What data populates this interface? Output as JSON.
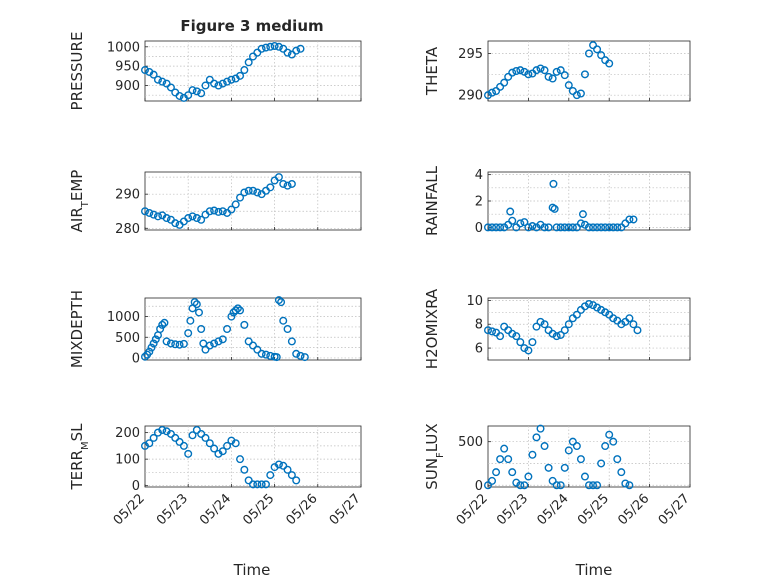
{
  "figure": {
    "title": "Figure 3 medium",
    "x_axis_label": "Time",
    "date_ticks": [
      "05/22",
      "05/23",
      "05/24",
      "05/25",
      "05/26",
      "05/27"
    ]
  },
  "chart_data": [
    {
      "type": "scatter",
      "title": "Figure 3 medium",
      "xlabel": "",
      "ylabel": "PRESSURE",
      "xlim": [
        "05/22",
        "05/27"
      ],
      "ylim": [
        860,
        1015
      ],
      "yticks": [
        900,
        950,
        1000
      ],
      "xticklabels": [],
      "grid": true,
      "color": "#0072bd",
      "series": [
        {
          "x_days": [
            0,
            0.1,
            0.2,
            0.3,
            0.4,
            0.5,
            0.6,
            0.7,
            0.8,
            0.9,
            1.0,
            1.1,
            1.2,
            1.3,
            1.4,
            1.5,
            1.6,
            1.7,
            1.8,
            1.9,
            2.0,
            2.1,
            2.2,
            2.3,
            2.4,
            2.5,
            2.6,
            2.7,
            2.8,
            2.9,
            3.0,
            3.1,
            3.2,
            3.3,
            3.4,
            3.5,
            3.6,
            3.7,
            3.8,
            3.9,
            4.0
          ],
          "values": [
            940,
            935,
            928,
            915,
            910,
            905,
            895,
            882,
            873,
            868,
            875,
            888,
            885,
            880,
            900,
            915,
            905,
            900,
            905,
            910,
            915,
            918,
            925,
            940,
            960,
            975,
            985,
            995,
            998,
            1000,
            1002,
            1000,
            995,
            985,
            980,
            990,
            995,
            null,
            null,
            null,
            null
          ]
        }
      ]
    },
    {
      "type": "scatter",
      "xlabel": "",
      "ylabel": "THETA",
      "xlim": [
        "05/22",
        "05/27"
      ],
      "ylim": [
        289.3,
        296.5
      ],
      "yticks": [
        290,
        295
      ],
      "xticklabels": [],
      "grid": true,
      "color": "#0072bd",
      "series": [
        {
          "x_days": [
            0,
            0.1,
            0.2,
            0.3,
            0.4,
            0.5,
            0.6,
            0.7,
            0.8,
            0.9,
            1.0,
            1.1,
            1.2,
            1.3,
            1.4,
            1.5,
            1.6,
            1.7,
            1.8,
            1.9,
            2.0,
            2.1,
            2.2,
            2.3,
            2.4,
            2.5,
            2.6,
            2.7,
            2.8,
            2.9,
            3.0,
            3.1,
            3.2,
            3.3,
            3.4,
            3.5,
            3.6,
            3.7,
            3.8,
            3.9,
            4.0
          ],
          "values": [
            290,
            290.3,
            290.5,
            291,
            291.5,
            292.2,
            292.7,
            292.9,
            293,
            292.8,
            292.5,
            292.6,
            293,
            293.2,
            293,
            292.2,
            292,
            292.8,
            293,
            292.4,
            291.2,
            290.5,
            290,
            290.2,
            292.5,
            295,
            296,
            295.5,
            294.8,
            294.2,
            293.8,
            null,
            null,
            null,
            null,
            null,
            null,
            null,
            null,
            null,
            null
          ]
        }
      ]
    },
    {
      "type": "scatter",
      "xlabel": "",
      "ylabel_main": "AIR",
      "ylabel_sub": "T",
      "ylabel_tail": "EMP",
      "xlim": [
        "05/22",
        "05/27"
      ],
      "ylim": [
        279.5,
        296.5
      ],
      "yticks": [
        280,
        290
      ],
      "xticklabels": [],
      "grid": true,
      "color": "#0072bd",
      "series": [
        {
          "x_days": [
            0,
            0.1,
            0.2,
            0.3,
            0.4,
            0.5,
            0.6,
            0.7,
            0.8,
            0.9,
            1.0,
            1.1,
            1.2,
            1.3,
            1.4,
            1.5,
            1.6,
            1.7,
            1.8,
            1.9,
            2.0,
            2.1,
            2.2,
            2.3,
            2.4,
            2.5,
            2.6,
            2.7,
            2.8,
            2.9,
            3.0,
            3.1,
            3.2,
            3.3,
            3.4,
            3.5,
            3.6,
            3.7,
            3.8,
            3.9,
            4.0
          ],
          "values": [
            285,
            284.5,
            284,
            283.5,
            283.8,
            283,
            282.5,
            281.5,
            281,
            282,
            283,
            283.5,
            283,
            282.5,
            284,
            285,
            285.2,
            284.8,
            285,
            284.5,
            285.5,
            287,
            289,
            290.5,
            291,
            291,
            290.5,
            290,
            291,
            292,
            294,
            295,
            293,
            292.5,
            293,
            null,
            null,
            null,
            null,
            null,
            null
          ]
        }
      ]
    },
    {
      "type": "scatter",
      "xlabel": "",
      "ylabel": "RAINFALL",
      "xlim": [
        "05/22",
        "05/27"
      ],
      "ylim": [
        -0.2,
        4.2
      ],
      "yticks": [
        0,
        2,
        4
      ],
      "xticklabels": [],
      "grid": true,
      "color": "#0072bd",
      "series": [
        {
          "x_days": [
            0,
            0.1,
            0.2,
            0.3,
            0.4,
            0.5,
            0.55,
            0.6,
            0.7,
            0.8,
            0.9,
            1.0,
            1.1,
            1.2,
            1.3,
            1.4,
            1.5,
            1.6,
            1.62,
            1.65,
            1.7,
            1.8,
            1.9,
            2.0,
            2.1,
            2.2,
            2.3,
            2.35,
            2.4,
            2.5,
            2.6,
            2.7,
            2.8,
            2.9,
            3.0,
            3.1,
            3.2,
            3.3,
            3.4,
            3.5,
            3.6,
            3.7,
            3.8,
            3.9,
            4.0
          ],
          "values": [
            0,
            0,
            0,
            0,
            0,
            0.2,
            1.2,
            0.5,
            0,
            0.3,
            0.4,
            0,
            0.1,
            0,
            0.2,
            0,
            0,
            1.5,
            3.3,
            1.4,
            0,
            0,
            0,
            0,
            0,
            0,
            0.3,
            1.0,
            0.2,
            0,
            0,
            0,
            0,
            0,
            0,
            0,
            0,
            0,
            0.3,
            0.6,
            0.6,
            null,
            null,
            null,
            null
          ]
        }
      ]
    },
    {
      "type": "scatter",
      "xlabel": "",
      "ylabel": "MIXDEPTH",
      "xlim": [
        "05/22",
        "05/27"
      ],
      "ylim": [
        -50,
        1450
      ],
      "yticks": [
        0,
        500,
        1000
      ],
      "xticklabels": [],
      "grid": true,
      "color": "#0072bd",
      "series": [
        {
          "x_days": [
            0,
            0.05,
            0.1,
            0.15,
            0.2,
            0.25,
            0.3,
            0.35,
            0.4,
            0.45,
            0.5,
            0.6,
            0.7,
            0.8,
            0.9,
            1.0,
            1.05,
            1.1,
            1.15,
            1.2,
            1.25,
            1.3,
            1.35,
            1.4,
            1.5,
            1.6,
            1.7,
            1.8,
            1.9,
            2.0,
            2.05,
            2.1,
            2.15,
            2.2,
            2.3,
            2.4,
            2.5,
            2.6,
            2.7,
            2.8,
            2.9,
            3.0,
            3.05,
            3.1,
            3.15,
            3.2,
            3.3,
            3.4,
            3.5,
            3.6,
            3.7
          ],
          "values": [
            30,
            80,
            150,
            250,
            350,
            450,
            550,
            700,
            800,
            850,
            400,
            350,
            330,
            320,
            340,
            600,
            900,
            1200,
            1350,
            1300,
            1100,
            700,
            350,
            200,
            300,
            350,
            400,
            450,
            700,
            1000,
            1100,
            1150,
            1200,
            1150,
            800,
            400,
            300,
            200,
            100,
            80,
            50,
            30,
            20,
            1400,
            1350,
            900,
            700,
            400,
            100,
            50,
            20
          ]
        }
      ]
    },
    {
      "type": "scatter",
      "xlabel": "",
      "ylabel": "H2OMIXRA",
      "xlim": [
        "05/22",
        "05/27"
      ],
      "ylim": [
        5,
        10.2
      ],
      "yticks": [
        6,
        8,
        10
      ],
      "xticklabels": [],
      "grid": true,
      "color": "#0072bd",
      "series": [
        {
          "x_days": [
            0,
            0.1,
            0.2,
            0.3,
            0.4,
            0.5,
            0.6,
            0.7,
            0.8,
            0.9,
            1.0,
            1.1,
            1.2,
            1.3,
            1.4,
            1.5,
            1.6,
            1.7,
            1.8,
            1.9,
            2.0,
            2.1,
            2.2,
            2.3,
            2.4,
            2.5,
            2.6,
            2.7,
            2.8,
            2.9,
            3.0,
            3.1,
            3.2,
            3.3,
            3.4,
            3.5,
            3.6,
            3.7,
            3.8,
            3.9,
            4.0
          ],
          "values": [
            7.5,
            7.4,
            7.3,
            7.0,
            7.8,
            7.5,
            7.2,
            7.0,
            6.5,
            6.0,
            5.8,
            6.5,
            7.8,
            8.2,
            8.0,
            7.5,
            7.2,
            7.0,
            7.1,
            7.5,
            8.0,
            8.5,
            8.8,
            9.2,
            9.5,
            9.7,
            9.6,
            9.4,
            9.2,
            9.0,
            8.8,
            8.5,
            8.3,
            8.0,
            8.2,
            8.5,
            8.0,
            7.5,
            null,
            null,
            null
          ]
        }
      ]
    },
    {
      "type": "scatter",
      "xlabel": "Time",
      "ylabel_main": "TERR",
      "ylabel_sub": "M",
      "ylabel_tail": "SL",
      "xlim": [
        "05/22",
        "05/27"
      ],
      "ylim": [
        -5,
        225
      ],
      "yticks": [
        0,
        100,
        200
      ],
      "xticklabels": [
        "05/22",
        "05/23",
        "05/24",
        "05/25",
        "05/26",
        "05/27"
      ],
      "grid": true,
      "color": "#0072bd",
      "series": [
        {
          "x_days": [
            0,
            0.1,
            0.2,
            0.3,
            0.4,
            0.5,
            0.6,
            0.7,
            0.8,
            0.9,
            1.0,
            1.1,
            1.2,
            1.3,
            1.4,
            1.5,
            1.6,
            1.7,
            1.8,
            1.9,
            2.0,
            2.1,
            2.2,
            2.3,
            2.4,
            2.5,
            2.6,
            2.7,
            2.8,
            2.9,
            3.0,
            3.1,
            3.2,
            3.3,
            3.4,
            3.5,
            3.6,
            3.7,
            3.8,
            3.9,
            4.0
          ],
          "values": [
            150,
            160,
            180,
            200,
            210,
            205,
            195,
            180,
            165,
            150,
            120,
            190,
            210,
            195,
            180,
            160,
            140,
            120,
            130,
            150,
            170,
            160,
            100,
            60,
            20,
            5,
            5,
            5,
            5,
            40,
            70,
            80,
            75,
            60,
            40,
            20,
            null,
            null,
            null,
            null,
            null
          ]
        }
      ]
    },
    {
      "type": "scatter",
      "xlabel": "Time",
      "ylabel_main": "SUN",
      "ylabel_sub": "F",
      "ylabel_tail": "LUX",
      "xlim": [
        "05/22",
        "05/27"
      ],
      "ylim": [
        -20,
        680
      ],
      "yticks": [
        0,
        500
      ],
      "xticklabels": [
        "05/22",
        "05/23",
        "05/24",
        "05/25",
        "05/26",
        "05/27"
      ],
      "grid": true,
      "color": "#0072bd",
      "series": [
        {
          "x_days": [
            0,
            0.1,
            0.2,
            0.3,
            0.4,
            0.5,
            0.6,
            0.7,
            0.8,
            0.9,
            1.0,
            1.1,
            1.2,
            1.3,
            1.4,
            1.5,
            1.6,
            1.7,
            1.8,
            1.9,
            2.0,
            2.1,
            2.2,
            2.3,
            2.4,
            2.5,
            2.6,
            2.7,
            2.8,
            2.9,
            3.0,
            3.1,
            3.2,
            3.3,
            3.4,
            3.5,
            3.6,
            3.7,
            3.8,
            3.9,
            4.0
          ],
          "values": [
            0,
            50,
            150,
            300,
            420,
            300,
            150,
            30,
            0,
            0,
            100,
            350,
            550,
            650,
            450,
            200,
            50,
            0,
            0,
            200,
            400,
            500,
            450,
            300,
            100,
            0,
            0,
            0,
            250,
            450,
            580,
            500,
            300,
            150,
            20,
            0,
            null,
            null,
            null,
            null,
            null
          ]
        }
      ]
    }
  ]
}
